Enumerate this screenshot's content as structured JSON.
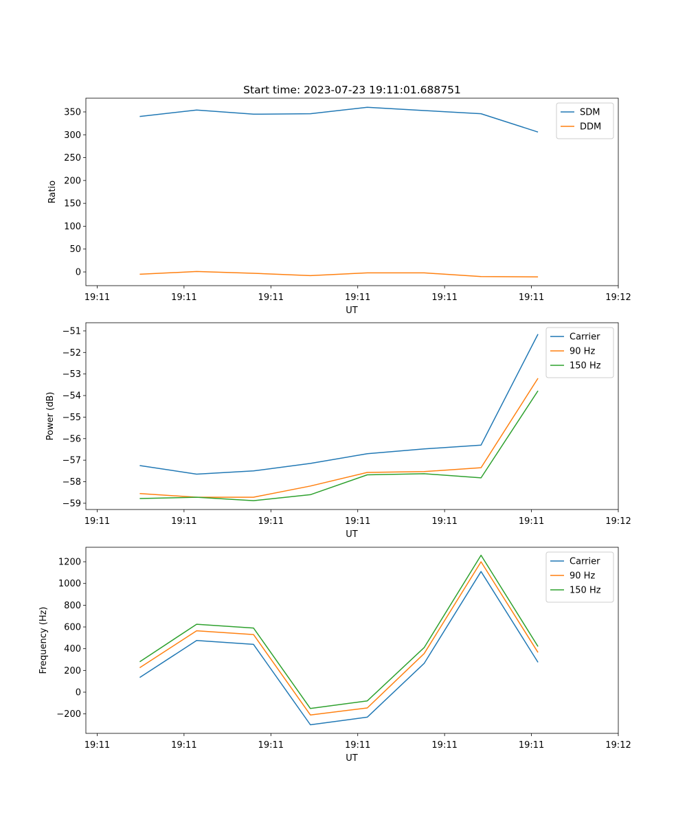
{
  "chart_data": [
    {
      "type": "line",
      "title": "Start time: 2023-07-23 19:11:01.688751",
      "xlabel": "UT",
      "ylabel": "Ratio",
      "x": [
        0.49,
        1.145,
        1.8,
        2.455,
        3.11,
        3.765,
        4.42,
        5.075
      ],
      "xlim": [
        -0.13,
        6
      ],
      "xticks": [
        0,
        1,
        2,
        3,
        4,
        5,
        6
      ],
      "xtick_labels": [
        "19:11",
        "19:11",
        "19:11",
        "19:11",
        "19:11",
        "19:11",
        "19:12"
      ],
      "ylim": [
        -30,
        380
      ],
      "yticks": [
        0,
        50,
        100,
        150,
        200,
        250,
        300,
        350
      ],
      "ytick_labels": [
        "0",
        "50",
        "100",
        "150",
        "200",
        "250",
        "300",
        "350"
      ],
      "legend": "top-right",
      "series": [
        {
          "name": "SDM",
          "color": "#1f77b4",
          "values": [
            340,
            354,
            345,
            346,
            360,
            353,
            346,
            306
          ]
        },
        {
          "name": "DDM",
          "color": "#ff7f0e",
          "values": [
            -5,
            1,
            -3,
            -8,
            -2,
            -2,
            -10,
            -11
          ]
        }
      ]
    },
    {
      "type": "line",
      "xlabel": "UT",
      "ylabel": "Power (dB)",
      "x": [
        0.49,
        1.145,
        1.8,
        2.455,
        3.11,
        3.765,
        4.42,
        5.075
      ],
      "xlim": [
        -0.13,
        6
      ],
      "xticks": [
        0,
        1,
        2,
        3,
        4,
        5,
        6
      ],
      "xtick_labels": [
        "19:11",
        "19:11",
        "19:11",
        "19:11",
        "19:11",
        "19:11",
        "19:12"
      ],
      "ylim": [
        -59.29,
        -50.62
      ],
      "yticks": [
        -59,
        -58,
        -57,
        -56,
        -55,
        -54,
        -53,
        -52,
        -51
      ],
      "ytick_labels": [
        "−59",
        "−58",
        "−57",
        "−56",
        "−55",
        "−54",
        "−53",
        "−52",
        "−51"
      ],
      "legend": "top-right",
      "series": [
        {
          "name": "Carrier",
          "color": "#1f77b4",
          "values": [
            -57.25,
            -57.65,
            -57.5,
            -57.15,
            -56.7,
            -56.48,
            -56.3,
            -51.15
          ]
        },
        {
          "name": "90 Hz",
          "color": "#ff7f0e",
          "values": [
            -58.55,
            -58.72,
            -58.72,
            -58.2,
            -57.57,
            -57.53,
            -57.35,
            -53.2
          ]
        },
        {
          "name": "150 Hz",
          "color": "#2ca02c",
          "values": [
            -58.78,
            -58.72,
            -58.88,
            -58.6,
            -57.68,
            -57.63,
            -57.82,
            -53.78
          ]
        }
      ]
    },
    {
      "type": "line",
      "xlabel": "UT",
      "ylabel": "Frequency (Hz)",
      "x": [
        0.49,
        1.145,
        1.8,
        2.455,
        3.11,
        3.765,
        4.42,
        5.075
      ],
      "xlim": [
        -0.13,
        6
      ],
      "xticks": [
        0,
        1,
        2,
        3,
        4,
        5,
        6
      ],
      "xtick_labels": [
        "19:11",
        "19:11",
        "19:11",
        "19:11",
        "19:11",
        "19:11",
        "19:12"
      ],
      "ylim": [
        -379,
        1333
      ],
      "yticks": [
        -200,
        0,
        200,
        400,
        600,
        800,
        1000,
        1200
      ],
      "ytick_labels": [
        "−200",
        "0",
        "200",
        "400",
        "600",
        "800",
        "1000",
        "1200"
      ],
      "legend": "top-right",
      "series": [
        {
          "name": "Carrier",
          "color": "#1f77b4",
          "values": [
            135,
            475,
            440,
            -300,
            -230,
            265,
            1110,
            275
          ]
        },
        {
          "name": "90 Hz",
          "color": "#ff7f0e",
          "values": [
            225,
            565,
            530,
            -210,
            -145,
            355,
            1200,
            365
          ]
        },
        {
          "name": "150 Hz",
          "color": "#2ca02c",
          "values": [
            280,
            625,
            590,
            -150,
            -80,
            410,
            1260,
            420
          ]
        }
      ]
    }
  ]
}
